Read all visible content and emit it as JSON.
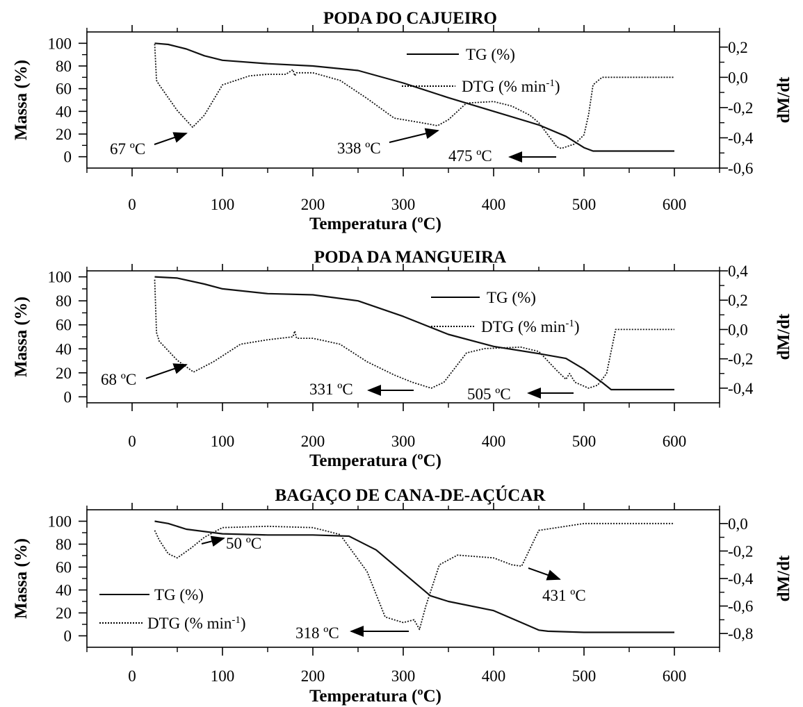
{
  "chart_data": [
    {
      "type": "line",
      "title": "PODA DO CAJUEIRO",
      "xlabel": "Temperatura (ºC)",
      "ylabel": "Massa (%)",
      "y2label": "dM/dt",
      "xlim": [
        -50,
        650
      ],
      "ylim": [
        -10,
        110
      ],
      "y2lim": [
        -0.6,
        0.3
      ],
      "xticks": [
        0,
        100,
        200,
        300,
        400,
        500,
        600
      ],
      "xtick_labels": [
        "0",
        "100",
        "200",
        "300",
        "400",
        "500",
        "600"
      ],
      "yticks": [
        0,
        20,
        40,
        60,
        80,
        100
      ],
      "ytick_labels": [
        "0",
        "20",
        "40",
        "60",
        "80",
        "100"
      ],
      "y2ticks": [
        0.2,
        0.0,
        -0.2,
        -0.4,
        -0.6
      ],
      "y2tick_labels": [
        "0,2",
        "0,0",
        "-0,2",
        "-0,4",
        "-0,6"
      ],
      "legend": [
        "TG (%)",
        "DTG (% min⁻¹)"
      ],
      "legend_placement": "top-right",
      "series": [
        {
          "name": "TG (%)",
          "axis": "left",
          "style": "solid",
          "x": [
            25,
            40,
            60,
            80,
            100,
            150,
            200,
            250,
            300,
            350,
            400,
            450,
            480,
            500,
            510,
            600
          ],
          "y": [
            100,
            99,
            95,
            89,
            85,
            82,
            80,
            76,
            65,
            52,
            40,
            28,
            18,
            8,
            5,
            5
          ]
        },
        {
          "name": "DTG (% min⁻¹)",
          "axis": "right",
          "style": "dotted",
          "x": [
            25,
            27,
            30,
            50,
            67,
            80,
            100,
            130,
            150,
            170,
            178,
            180,
            182,
            200,
            230,
            260,
            290,
            320,
            338,
            350,
            370,
            400,
            420,
            440,
            450,
            460,
            470,
            475,
            490,
            500,
            505,
            510,
            520,
            600
          ],
          "y": [
            0.22,
            -0.02,
            -0.05,
            -0.22,
            -0.33,
            -0.25,
            -0.05,
            0.01,
            0.02,
            0.02,
            0.05,
            0.01,
            0.03,
            0.03,
            -0.02,
            -0.14,
            -0.27,
            -0.3,
            -0.32,
            -0.28,
            -0.17,
            -0.16,
            -0.19,
            -0.25,
            -0.3,
            -0.38,
            -0.46,
            -0.47,
            -0.44,
            -0.38,
            -0.25,
            -0.05,
            0.0,
            0.0
          ]
        }
      ],
      "annotations": [
        {
          "text": "67 ºC",
          "x": 67
        },
        {
          "text": "338 ºC",
          "x": 338
        },
        {
          "text": "475 ºC",
          "x": 475
        }
      ]
    },
    {
      "type": "line",
      "title": "PODA DA MANGUEIRA",
      "xlabel": "Temperatura (ºC)",
      "ylabel": "Massa (%)",
      "y2label": "dM/dt",
      "xlim": [
        -50,
        650
      ],
      "ylim": [
        -5,
        105
      ],
      "y2lim": [
        -0.5,
        0.4
      ],
      "xticks": [
        0,
        100,
        200,
        300,
        400,
        500,
        600
      ],
      "xtick_labels": [
        "0",
        "100",
        "200",
        "300",
        "400",
        "500",
        "600"
      ],
      "yticks": [
        0,
        20,
        40,
        60,
        80,
        100
      ],
      "ytick_labels": [
        "0",
        "20",
        "40",
        "60",
        "80",
        "100"
      ],
      "y2ticks": [
        0.4,
        0.2,
        0.0,
        -0.2,
        -0.4
      ],
      "y2tick_labels": [
        "0,4",
        "0,2",
        "0,0",
        "-0,2",
        "-0,4"
      ],
      "legend": [
        "TG (%)",
        "DTG (% min⁻¹)"
      ],
      "legend_placement": "top-right",
      "series": [
        {
          "name": "TG (%)",
          "axis": "left",
          "style": "solid",
          "x": [
            25,
            50,
            80,
            100,
            150,
            200,
            250,
            300,
            350,
            400,
            450,
            480,
            500,
            520,
            530,
            600
          ],
          "y": [
            100,
            99,
            94,
            90,
            86,
            85,
            80,
            67,
            52,
            42,
            36,
            32,
            23,
            12,
            6,
            6
          ]
        },
        {
          "name": "DTG (% min⁻¹)",
          "axis": "right",
          "style": "dotted",
          "x": [
            25,
            27,
            30,
            50,
            68,
            90,
            120,
            150,
            178,
            180,
            182,
            200,
            230,
            260,
            290,
            310,
            331,
            345,
            370,
            390,
            430,
            450,
            470,
            480,
            484,
            490,
            505,
            515,
            525,
            535,
            600
          ],
          "y": [
            0.34,
            -0.02,
            -0.08,
            -0.21,
            -0.29,
            -0.22,
            -0.1,
            -0.07,
            -0.05,
            -0.01,
            -0.06,
            -0.06,
            -0.1,
            -0.22,
            -0.31,
            -0.36,
            -0.4,
            -0.36,
            -0.16,
            -0.13,
            -0.12,
            -0.15,
            -0.28,
            -0.34,
            -0.3,
            -0.36,
            -0.4,
            -0.38,
            -0.3,
            0.0,
            0.0
          ]
        }
      ],
      "annotations": [
        {
          "text": "68 ºC",
          "x": 68
        },
        {
          "text": "331 ºC",
          "x": 331
        },
        {
          "text": "505 ºC",
          "x": 505
        }
      ]
    },
    {
      "type": "line",
      "title": "BAGAÇO DE CANA-DE-AÇÚCAR",
      "xlabel": "Temperatura (ºC)",
      "ylabel": "Massa (%)",
      "y2label": "dM/dt",
      "xlim": [
        -50,
        650
      ],
      "ylim": [
        -10,
        110
      ],
      "y2lim": [
        -0.9,
        0.1
      ],
      "xticks": [
        0,
        100,
        200,
        300,
        400,
        500,
        600
      ],
      "xtick_labels": [
        "0",
        "100",
        "200",
        "300",
        "400",
        "500",
        "600"
      ],
      "yticks": [
        0,
        20,
        40,
        60,
        80,
        100
      ],
      "ytick_labels": [
        "0",
        "20",
        "40",
        "60",
        "80",
        "100"
      ],
      "y2ticks": [
        0.0,
        -0.2,
        -0.4,
        -0.6,
        -0.8
      ],
      "y2tick_labels": [
        "0,0",
        "-0,2",
        "-0,4",
        "-0,6",
        "-0,8"
      ],
      "legend": [
        "TG (%)",
        "DTG (% min⁻¹)"
      ],
      "legend_placement": "bottom-left",
      "series": [
        {
          "name": "TG (%)",
          "axis": "left",
          "style": "solid",
          "x": [
            25,
            40,
            60,
            100,
            150,
            200,
            240,
            270,
            300,
            330,
            350,
            400,
            450,
            460,
            500,
            600
          ],
          "y": [
            100,
            98,
            93,
            89,
            88,
            88,
            87,
            75,
            55,
            35,
            30,
            22,
            5,
            4,
            3,
            3
          ]
        },
        {
          "name": "DTG (% min⁻¹)",
          "axis": "right",
          "style": "dotted",
          "x": [
            25,
            30,
            40,
            50,
            65,
            80,
            100,
            150,
            200,
            230,
            260,
            280,
            300,
            312,
            318,
            325,
            340,
            360,
            400,
            420,
            431,
            450,
            500,
            600
          ],
          "y": [
            -0.05,
            -0.12,
            -0.22,
            -0.25,
            -0.18,
            -0.1,
            -0.03,
            -0.02,
            -0.03,
            -0.08,
            -0.35,
            -0.68,
            -0.72,
            -0.7,
            -0.77,
            -0.6,
            -0.3,
            -0.23,
            -0.25,
            -0.3,
            -0.31,
            -0.05,
            0.0,
            0.0
          ]
        }
      ],
      "annotations": [
        {
          "text": "50 ºC",
          "x": 50
        },
        {
          "text": "318 ºC",
          "x": 318
        },
        {
          "text": "431 ºC",
          "x": 431
        }
      ]
    }
  ]
}
